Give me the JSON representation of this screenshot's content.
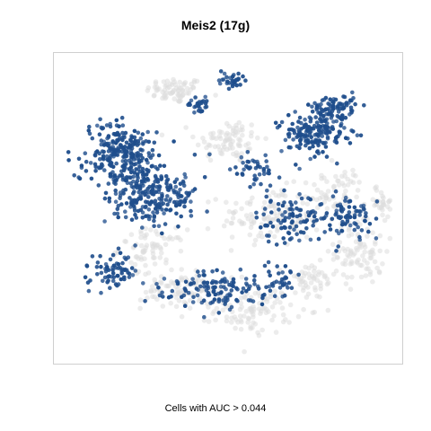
{
  "chart_data": {
    "type": "scatter",
    "title": "Meis2 (17g)",
    "caption": "Cells with AUC > 0.044",
    "xlabel": "",
    "ylabel": "",
    "xlim": [
      0,
      100
    ],
    "ylim": [
      0,
      100
    ],
    "grid": false,
    "axes_visible": false,
    "legend": "none",
    "colors": {
      "above_threshold": "#1f4e8c",
      "below_threshold": "#dcdcdc"
    },
    "regions": [
      {
        "group": "below_threshold",
        "cx": 34,
        "cy": 90,
        "rx": 8,
        "ry": 4,
        "n": 70
      },
      {
        "group": "below_threshold",
        "cx": 50,
        "cy": 73,
        "rx": 9,
        "ry": 7,
        "n": 80
      },
      {
        "group": "below_threshold",
        "cx": 63,
        "cy": 47,
        "rx": 14,
        "ry": 9,
        "n": 120
      },
      {
        "group": "below_threshold",
        "cx": 90,
        "cy": 35,
        "rx": 7,
        "ry": 10,
        "n": 90
      },
      {
        "group": "below_threshold",
        "cx": 82,
        "cy": 55,
        "rx": 9,
        "ry": 8,
        "n": 60
      },
      {
        "group": "below_threshold",
        "cx": 27,
        "cy": 36,
        "rx": 9,
        "ry": 6,
        "n": 70
      },
      {
        "group": "below_threshold",
        "cx": 36,
        "cy": 22,
        "rx": 11,
        "ry": 6,
        "n": 90
      },
      {
        "group": "below_threshold",
        "cx": 58,
        "cy": 15,
        "rx": 11,
        "ry": 7,
        "n": 100
      },
      {
        "group": "below_threshold",
        "cx": 75,
        "cy": 25,
        "rx": 7,
        "ry": 6,
        "n": 50
      },
      {
        "group": "below_threshold",
        "cx": 96,
        "cy": 52,
        "rx": 4,
        "ry": 5,
        "n": 30
      },
      {
        "group": "above_threshold",
        "cx": 17,
        "cy": 68,
        "rx": 10,
        "ry": 11,
        "n": 260
      },
      {
        "group": "above_threshold",
        "cx": 28,
        "cy": 55,
        "rx": 12,
        "ry": 10,
        "n": 220
      },
      {
        "group": "above_threshold",
        "cx": 76,
        "cy": 75,
        "rx": 9,
        "ry": 7,
        "n": 170
      },
      {
        "group": "above_threshold",
        "cx": 82,
        "cy": 84,
        "rx": 7,
        "ry": 4,
        "n": 80
      },
      {
        "group": "above_threshold",
        "cx": 46,
        "cy": 22,
        "rx": 15,
        "ry": 6,
        "n": 130
      },
      {
        "group": "above_threshold",
        "cx": 15,
        "cy": 28,
        "rx": 7,
        "ry": 6,
        "n": 70
      },
      {
        "group": "above_threshold",
        "cx": 69,
        "cy": 47,
        "rx": 10,
        "ry": 7,
        "n": 90
      },
      {
        "group": "above_threshold",
        "cx": 86,
        "cy": 47,
        "rx": 9,
        "ry": 8,
        "n": 80
      },
      {
        "group": "above_threshold",
        "cx": 58,
        "cy": 63,
        "rx": 6,
        "ry": 5,
        "n": 40
      },
      {
        "group": "above_threshold",
        "cx": 41,
        "cy": 85,
        "rx": 4,
        "ry": 3,
        "n": 25
      },
      {
        "group": "above_threshold",
        "cx": 51,
        "cy": 93,
        "rx": 4,
        "ry": 3,
        "n": 30
      },
      {
        "group": "above_threshold",
        "cx": 67,
        "cy": 26,
        "rx": 5,
        "ry": 5,
        "n": 30
      }
    ]
  }
}
